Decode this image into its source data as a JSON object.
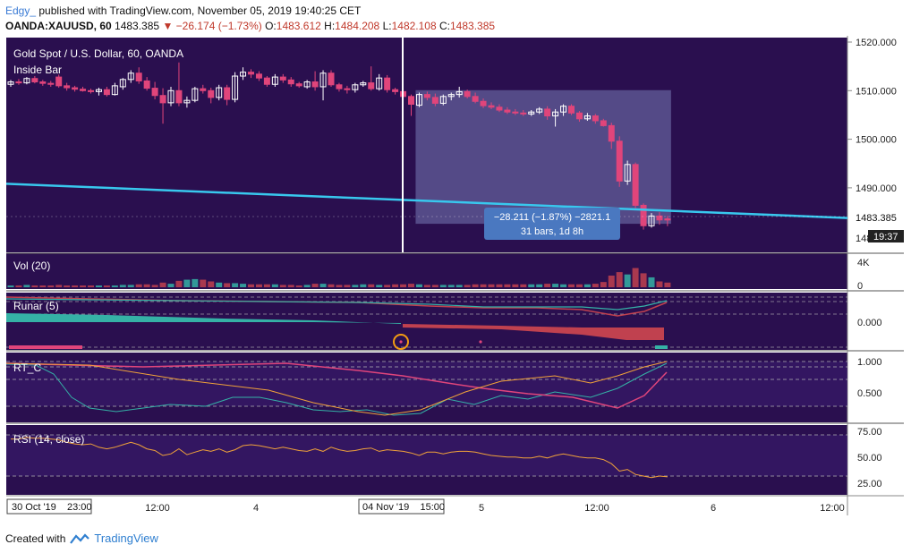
{
  "header": {
    "author": "Edgy_",
    "published": "published with TradingView.com, November 05, 2019 19:40:25 CET",
    "symbol": "OANDA:XAUUSD, 60",
    "last": "1483.385",
    "arrow": "▼",
    "change": "−26.174 (−1.73%)",
    "o_label": "O:",
    "o": "1483.612",
    "h_label": "H:",
    "h": "1484.208",
    "l_label": "L:",
    "l": "1482.108",
    "c_label": "C:",
    "c": "1483.385"
  },
  "main": {
    "title": "Gold Spot / U.S. Dollar, 60, OANDA",
    "indicator": "Inside Bar",
    "price_ticks": [
      "1520.000",
      "1510.000",
      "1500.000",
      "1490.000"
    ],
    "price_tick_values": [
      1520,
      1510,
      1500,
      1490
    ],
    "price_partial_tick": "148",
    "price_badge": "1483.385",
    "time_badge": "19:37",
    "measure_line1": "−28.211 (−1.87%) −2821.1",
    "measure_line2": "31 bars, 1d 8h"
  },
  "volume": {
    "label": "Vol (20)",
    "ticks": [
      "4K",
      "0"
    ]
  },
  "runar": {
    "label": "Runar (5)",
    "ticks": [
      "0.000"
    ]
  },
  "rtc": {
    "label": "RT_C",
    "ticks": [
      "1.000",
      "0.500"
    ]
  },
  "rsi": {
    "label": "RSI (14, close)",
    "ticks": [
      "75.00",
      "50.00",
      "25.00"
    ]
  },
  "time_axis": {
    "start_badge": "30 Oct '19    23:00",
    "mid_badge": "04 Nov '19    15:00",
    "ticks": [
      "12:00",
      "4",
      "5",
      "12:00",
      "6",
      "12:00"
    ]
  },
  "footer": {
    "created": "Created with",
    "brand": "TradingView"
  },
  "colors": {
    "background": "#2a0f4f",
    "up": "#ffffff",
    "down": "#e0457b",
    "trendline": "#38c8ee",
    "measure_box": "#6b6aa6",
    "measure_label": "#4a78c0",
    "teal": "#35b1a6",
    "maroon": "#c0414f",
    "rsi_line": "#f0a23a"
  },
  "chart_data": {
    "type": "candlestick",
    "symbol": "OANDA:XAUUSD",
    "timeframe": "60",
    "ylim": [
      1480,
      1521
    ],
    "candles": [
      {
        "o": 1511.3,
        "h": 1512.2,
        "l": 1510.8,
        "c": 1511.8
      },
      {
        "o": 1511.8,
        "h": 1512.4,
        "l": 1511.2,
        "c": 1511.6
      },
      {
        "o": 1511.6,
        "h": 1512.8,
        "l": 1511.3,
        "c": 1512.5
      },
      {
        "o": 1512.5,
        "h": 1513.0,
        "l": 1511.5,
        "c": 1511.8
      },
      {
        "o": 1511.8,
        "h": 1512.2,
        "l": 1511.0,
        "c": 1511.5
      },
      {
        "o": 1511.5,
        "h": 1512.0,
        "l": 1510.8,
        "c": 1511.3
      },
      {
        "o": 1512.8,
        "h": 1513.3,
        "l": 1510.6,
        "c": 1511.0
      },
      {
        "o": 1511.0,
        "h": 1511.6,
        "l": 1510.0,
        "c": 1510.6
      },
      {
        "o": 1510.6,
        "h": 1511.0,
        "l": 1509.8,
        "c": 1510.3
      },
      {
        "o": 1510.3,
        "h": 1510.8,
        "l": 1509.8,
        "c": 1510.0
      },
      {
        "o": 1510.0,
        "h": 1510.4,
        "l": 1509.4,
        "c": 1509.8
      },
      {
        "o": 1509.8,
        "h": 1510.6,
        "l": 1509.0,
        "c": 1510.2
      },
      {
        "o": 1510.2,
        "h": 1510.8,
        "l": 1508.8,
        "c": 1509.2
      },
      {
        "o": 1509.2,
        "h": 1511.6,
        "l": 1509.0,
        "c": 1511.0
      },
      {
        "o": 1510.8,
        "h": 1512.6,
        "l": 1510.2,
        "c": 1512.3
      },
      {
        "o": 1512.3,
        "h": 1514.2,
        "l": 1511.6,
        "c": 1513.6
      },
      {
        "o": 1513.6,
        "h": 1514.8,
        "l": 1511.4,
        "c": 1512.0
      },
      {
        "o": 1512.0,
        "h": 1512.8,
        "l": 1510.0,
        "c": 1510.5
      },
      {
        "o": 1510.5,
        "h": 1511.8,
        "l": 1508.2,
        "c": 1509.0
      },
      {
        "o": 1509.0,
        "h": 1510.5,
        "l": 1503.2,
        "c": 1507.5
      },
      {
        "o": 1507.5,
        "h": 1510.8,
        "l": 1506.8,
        "c": 1510.0
      },
      {
        "o": 1510.0,
        "h": 1515.8,
        "l": 1506.8,
        "c": 1507.5
      },
      {
        "o": 1507.5,
        "h": 1508.8,
        "l": 1506.5,
        "c": 1508.0
      },
      {
        "o": 1508.0,
        "h": 1510.8,
        "l": 1507.6,
        "c": 1510.4
      },
      {
        "o": 1510.4,
        "h": 1511.2,
        "l": 1509.4,
        "c": 1510.0
      },
      {
        "o": 1510.0,
        "h": 1510.6,
        "l": 1507.4,
        "c": 1508.6
      },
      {
        "o": 1508.6,
        "h": 1511.2,
        "l": 1508.0,
        "c": 1510.6
      },
      {
        "o": 1510.6,
        "h": 1511.2,
        "l": 1507.0,
        "c": 1508.2
      },
      {
        "o": 1508.2,
        "h": 1513.8,
        "l": 1507.6,
        "c": 1513.0
      },
      {
        "o": 1513.0,
        "h": 1514.8,
        "l": 1512.2,
        "c": 1513.8
      },
      {
        "o": 1513.8,
        "h": 1514.4,
        "l": 1512.6,
        "c": 1513.4
      },
      {
        "o": 1513.4,
        "h": 1514.0,
        "l": 1512.0,
        "c": 1512.6
      },
      {
        "o": 1512.6,
        "h": 1513.0,
        "l": 1510.8,
        "c": 1511.3
      },
      {
        "o": 1511.3,
        "h": 1513.4,
        "l": 1510.8,
        "c": 1512.8
      },
      {
        "o": 1512.8,
        "h": 1513.4,
        "l": 1511.6,
        "c": 1512.2
      },
      {
        "o": 1512.2,
        "h": 1512.8,
        "l": 1510.8,
        "c": 1511.4
      },
      {
        "o": 1511.4,
        "h": 1511.8,
        "l": 1510.6,
        "c": 1511.0
      },
      {
        "o": 1510.8,
        "h": 1512.2,
        "l": 1510.4,
        "c": 1511.8
      },
      {
        "o": 1511.8,
        "h": 1514.0,
        "l": 1510.0,
        "c": 1510.8
      },
      {
        "o": 1510.8,
        "h": 1514.2,
        "l": 1508.0,
        "c": 1513.6
      },
      {
        "o": 1513.6,
        "h": 1514.2,
        "l": 1510.8,
        "c": 1511.2
      },
      {
        "o": 1511.2,
        "h": 1511.6,
        "l": 1509.8,
        "c": 1510.4
      },
      {
        "o": 1510.4,
        "h": 1511.0,
        "l": 1509.4,
        "c": 1510.2
      },
      {
        "o": 1510.2,
        "h": 1511.6,
        "l": 1509.6,
        "c": 1511.2
      },
      {
        "o": 1511.2,
        "h": 1512.0,
        "l": 1510.8,
        "c": 1511.6
      },
      {
        "o": 1511.6,
        "h": 1515.0,
        "l": 1510.0,
        "c": 1510.4
      },
      {
        "o": 1510.4,
        "h": 1513.4,
        "l": 1510.0,
        "c": 1512.6
      },
      {
        "o": 1512.6,
        "h": 1513.2,
        "l": 1509.6,
        "c": 1510.2
      },
      {
        "o": 1510.2,
        "h": 1510.6,
        "l": 1509.2,
        "c": 1509.8
      },
      {
        "o": 1509.8,
        "h": 1510.4,
        "l": 1508.4,
        "c": 1508.8
      },
      {
        "o": 1508.8,
        "h": 1509.2,
        "l": 1504.8,
        "c": 1507.2
      },
      {
        "o": 1507.0,
        "h": 1509.6,
        "l": 1506.6,
        "c": 1509.2
      },
      {
        "o": 1509.2,
        "h": 1509.8,
        "l": 1508.0,
        "c": 1508.6
      },
      {
        "o": 1508.6,
        "h": 1509.4,
        "l": 1506.8,
        "c": 1507.4
      },
      {
        "o": 1507.4,
        "h": 1509.2,
        "l": 1507.0,
        "c": 1508.8
      },
      {
        "o": 1508.8,
        "h": 1509.6,
        "l": 1508.0,
        "c": 1509.2
      },
      {
        "o": 1509.2,
        "h": 1510.8,
        "l": 1508.6,
        "c": 1509.8
      },
      {
        "o": 1509.8,
        "h": 1510.2,
        "l": 1508.4,
        "c": 1508.8
      },
      {
        "o": 1508.8,
        "h": 1509.6,
        "l": 1507.4,
        "c": 1507.8
      },
      {
        "o": 1507.8,
        "h": 1508.4,
        "l": 1506.4,
        "c": 1506.9
      },
      {
        "o": 1506.9,
        "h": 1507.6,
        "l": 1506.2,
        "c": 1506.6
      },
      {
        "o": 1506.6,
        "h": 1507.2,
        "l": 1505.6,
        "c": 1506.0
      },
      {
        "o": 1506.0,
        "h": 1506.6,
        "l": 1505.2,
        "c": 1505.6
      },
      {
        "o": 1505.6,
        "h": 1506.2,
        "l": 1505.0,
        "c": 1505.4
      },
      {
        "o": 1505.4,
        "h": 1506.0,
        "l": 1504.8,
        "c": 1505.2
      },
      {
        "o": 1505.2,
        "h": 1506.0,
        "l": 1504.8,
        "c": 1505.6
      },
      {
        "o": 1505.6,
        "h": 1506.6,
        "l": 1505.2,
        "c": 1506.2
      },
      {
        "o": 1506.2,
        "h": 1506.8,
        "l": 1504.0,
        "c": 1504.8
      },
      {
        "o": 1504.8,
        "h": 1506.2,
        "l": 1502.6,
        "c": 1505.6
      },
      {
        "o": 1505.6,
        "h": 1507.2,
        "l": 1504.8,
        "c": 1506.8
      },
      {
        "o": 1506.8,
        "h": 1507.2,
        "l": 1505.0,
        "c": 1505.4
      },
      {
        "o": 1505.4,
        "h": 1505.8,
        "l": 1503.6,
        "c": 1504.2
      },
      {
        "o": 1504.2,
        "h": 1505.4,
        "l": 1503.8,
        "c": 1504.8
      },
      {
        "o": 1504.8,
        "h": 1505.2,
        "l": 1503.2,
        "c": 1503.8
      },
      {
        "o": 1503.8,
        "h": 1504.2,
        "l": 1502.6,
        "c": 1502.8
      },
      {
        "o": 1502.8,
        "h": 1503.4,
        "l": 1498.0,
        "c": 1499.6
      },
      {
        "o": 1499.6,
        "h": 1500.6,
        "l": 1490.2,
        "c": 1491.4
      },
      {
        "o": 1491.4,
        "h": 1495.6,
        "l": 1490.6,
        "c": 1494.8
      },
      {
        "o": 1494.8,
        "h": 1495.2,
        "l": 1485.8,
        "c": 1486.4
      },
      {
        "o": 1486.4,
        "h": 1486.8,
        "l": 1481.4,
        "c": 1482.2
      },
      {
        "o": 1482.2,
        "h": 1484.8,
        "l": 1481.8,
        "c": 1484.2
      },
      {
        "o": 1484.2,
        "h": 1485.0,
        "l": 1482.4,
        "c": 1483.4
      },
      {
        "o": 1483.612,
        "h": 1484.208,
        "l": 1482.108,
        "c": 1483.385
      }
    ],
    "volume": [
      0.3,
      0.3,
      0.4,
      0.3,
      0.3,
      0.3,
      0.4,
      0.3,
      0.3,
      0.3,
      0.3,
      0.3,
      0.3,
      0.3,
      0.4,
      0.4,
      0.5,
      0.5,
      0.4,
      0.8,
      0.6,
      1.1,
      1.3,
      1.4,
      1.3,
      1.0,
      0.8,
      0.7,
      0.7,
      0.6,
      0.5,
      0.5,
      0.5,
      0.5,
      0.4,
      0.4,
      0.3,
      0.4,
      0.6,
      0.6,
      0.5,
      0.4,
      0.4,
      0.4,
      0.5,
      0.5,
      0.4,
      0.4,
      0.5,
      0.5,
      0.6,
      0.5,
      0.4,
      0.4,
      0.4,
      0.4,
      0.4,
      0.4,
      0.5,
      0.5,
      0.5,
      0.5,
      0.5,
      0.5,
      0.5,
      0.5,
      0.5,
      0.6,
      0.6,
      0.5,
      0.5,
      0.5,
      0.5,
      0.6,
      0.9,
      2.0,
      2.6,
      2.2,
      3.3,
      2.4,
      1.7,
      1.0,
      0.8
    ],
    "rsi": [
      70,
      70,
      72,
      71,
      71,
      70,
      69,
      66,
      64,
      63,
      64,
      60,
      58,
      60,
      63,
      66,
      63,
      58,
      56,
      50,
      52,
      58,
      51,
      54,
      57,
      55,
      58,
      54,
      57,
      62,
      63,
      62,
      60,
      58,
      60,
      58,
      56,
      55,
      58,
      55,
      60,
      57,
      55,
      56,
      58,
      59,
      55,
      57,
      56,
      55,
      53,
      50,
      54,
      54,
      52,
      54,
      55,
      55,
      54,
      52,
      50,
      49,
      48,
      48,
      47,
      47,
      49,
      47,
      50,
      52,
      50,
      48,
      47,
      47,
      45,
      40,
      31,
      33,
      27,
      25,
      23,
      25,
      24
    ],
    "trendline": [
      {
        "bar": 0,
        "price": 1490.8
      },
      {
        "bar": 82,
        "price": 1485.3
      }
    ],
    "measure": {
      "from_bar": 51,
      "to_bar": 82,
      "top": 1510.1,
      "bottom": 1482.6
    }
  }
}
